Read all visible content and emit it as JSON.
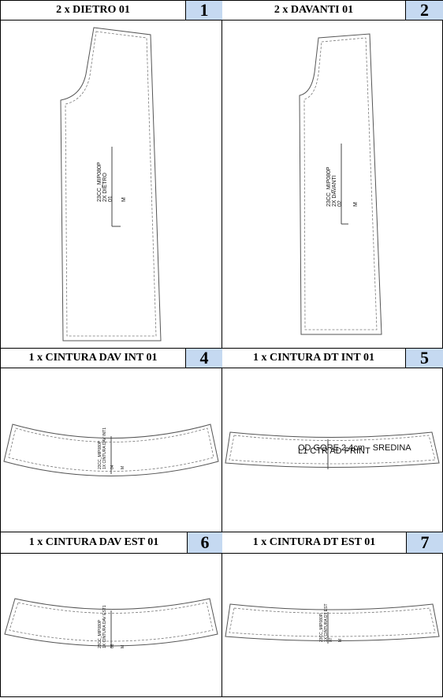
{
  "pieces": [
    {
      "title": "2 x DIETRO 01",
      "number": "1",
      "label_lines": [
        "23CC_MIP080P",
        "2X DIETRO",
        "01"
      ],
      "size": "M"
    },
    {
      "title": "2 x DAVANTI 01",
      "number": "2",
      "label_lines": [
        "23CC_MIP080P",
        "2X DAVANTI",
        "02"
      ],
      "size": "M"
    },
    {
      "title": "1 x CINTURA DAV INT 01",
      "number": "4",
      "label_lines": [
        "23CC_MIP080P",
        "1X CINTURA DAV INT1",
        "04"
      ],
      "size": "M"
    },
    {
      "title": "1 x CINTURA DT INT 01",
      "number": "5",
      "label_lines": [
        "OD GORE 2,4cm - SREDINA",
        "L1 CTR AD PRINT"
      ],
      "size": ""
    },
    {
      "title": "1 x CINTURA DAV EST 01",
      "number": "6",
      "label_lines": [
        "23CC_MIP080P",
        "1X CINTURA DAV EST1",
        "06"
      ],
      "size": "M"
    },
    {
      "title": "1 x CINTURA DT EST 01",
      "number": "7",
      "label_lines": [
        "23CC_MIP080P",
        "1X CINTURA DT EST",
        "07"
      ],
      "size": "M"
    }
  ],
  "colors": {
    "number_bg": "#c5d9f1",
    "outline": "#555555",
    "seam": "#777777"
  }
}
